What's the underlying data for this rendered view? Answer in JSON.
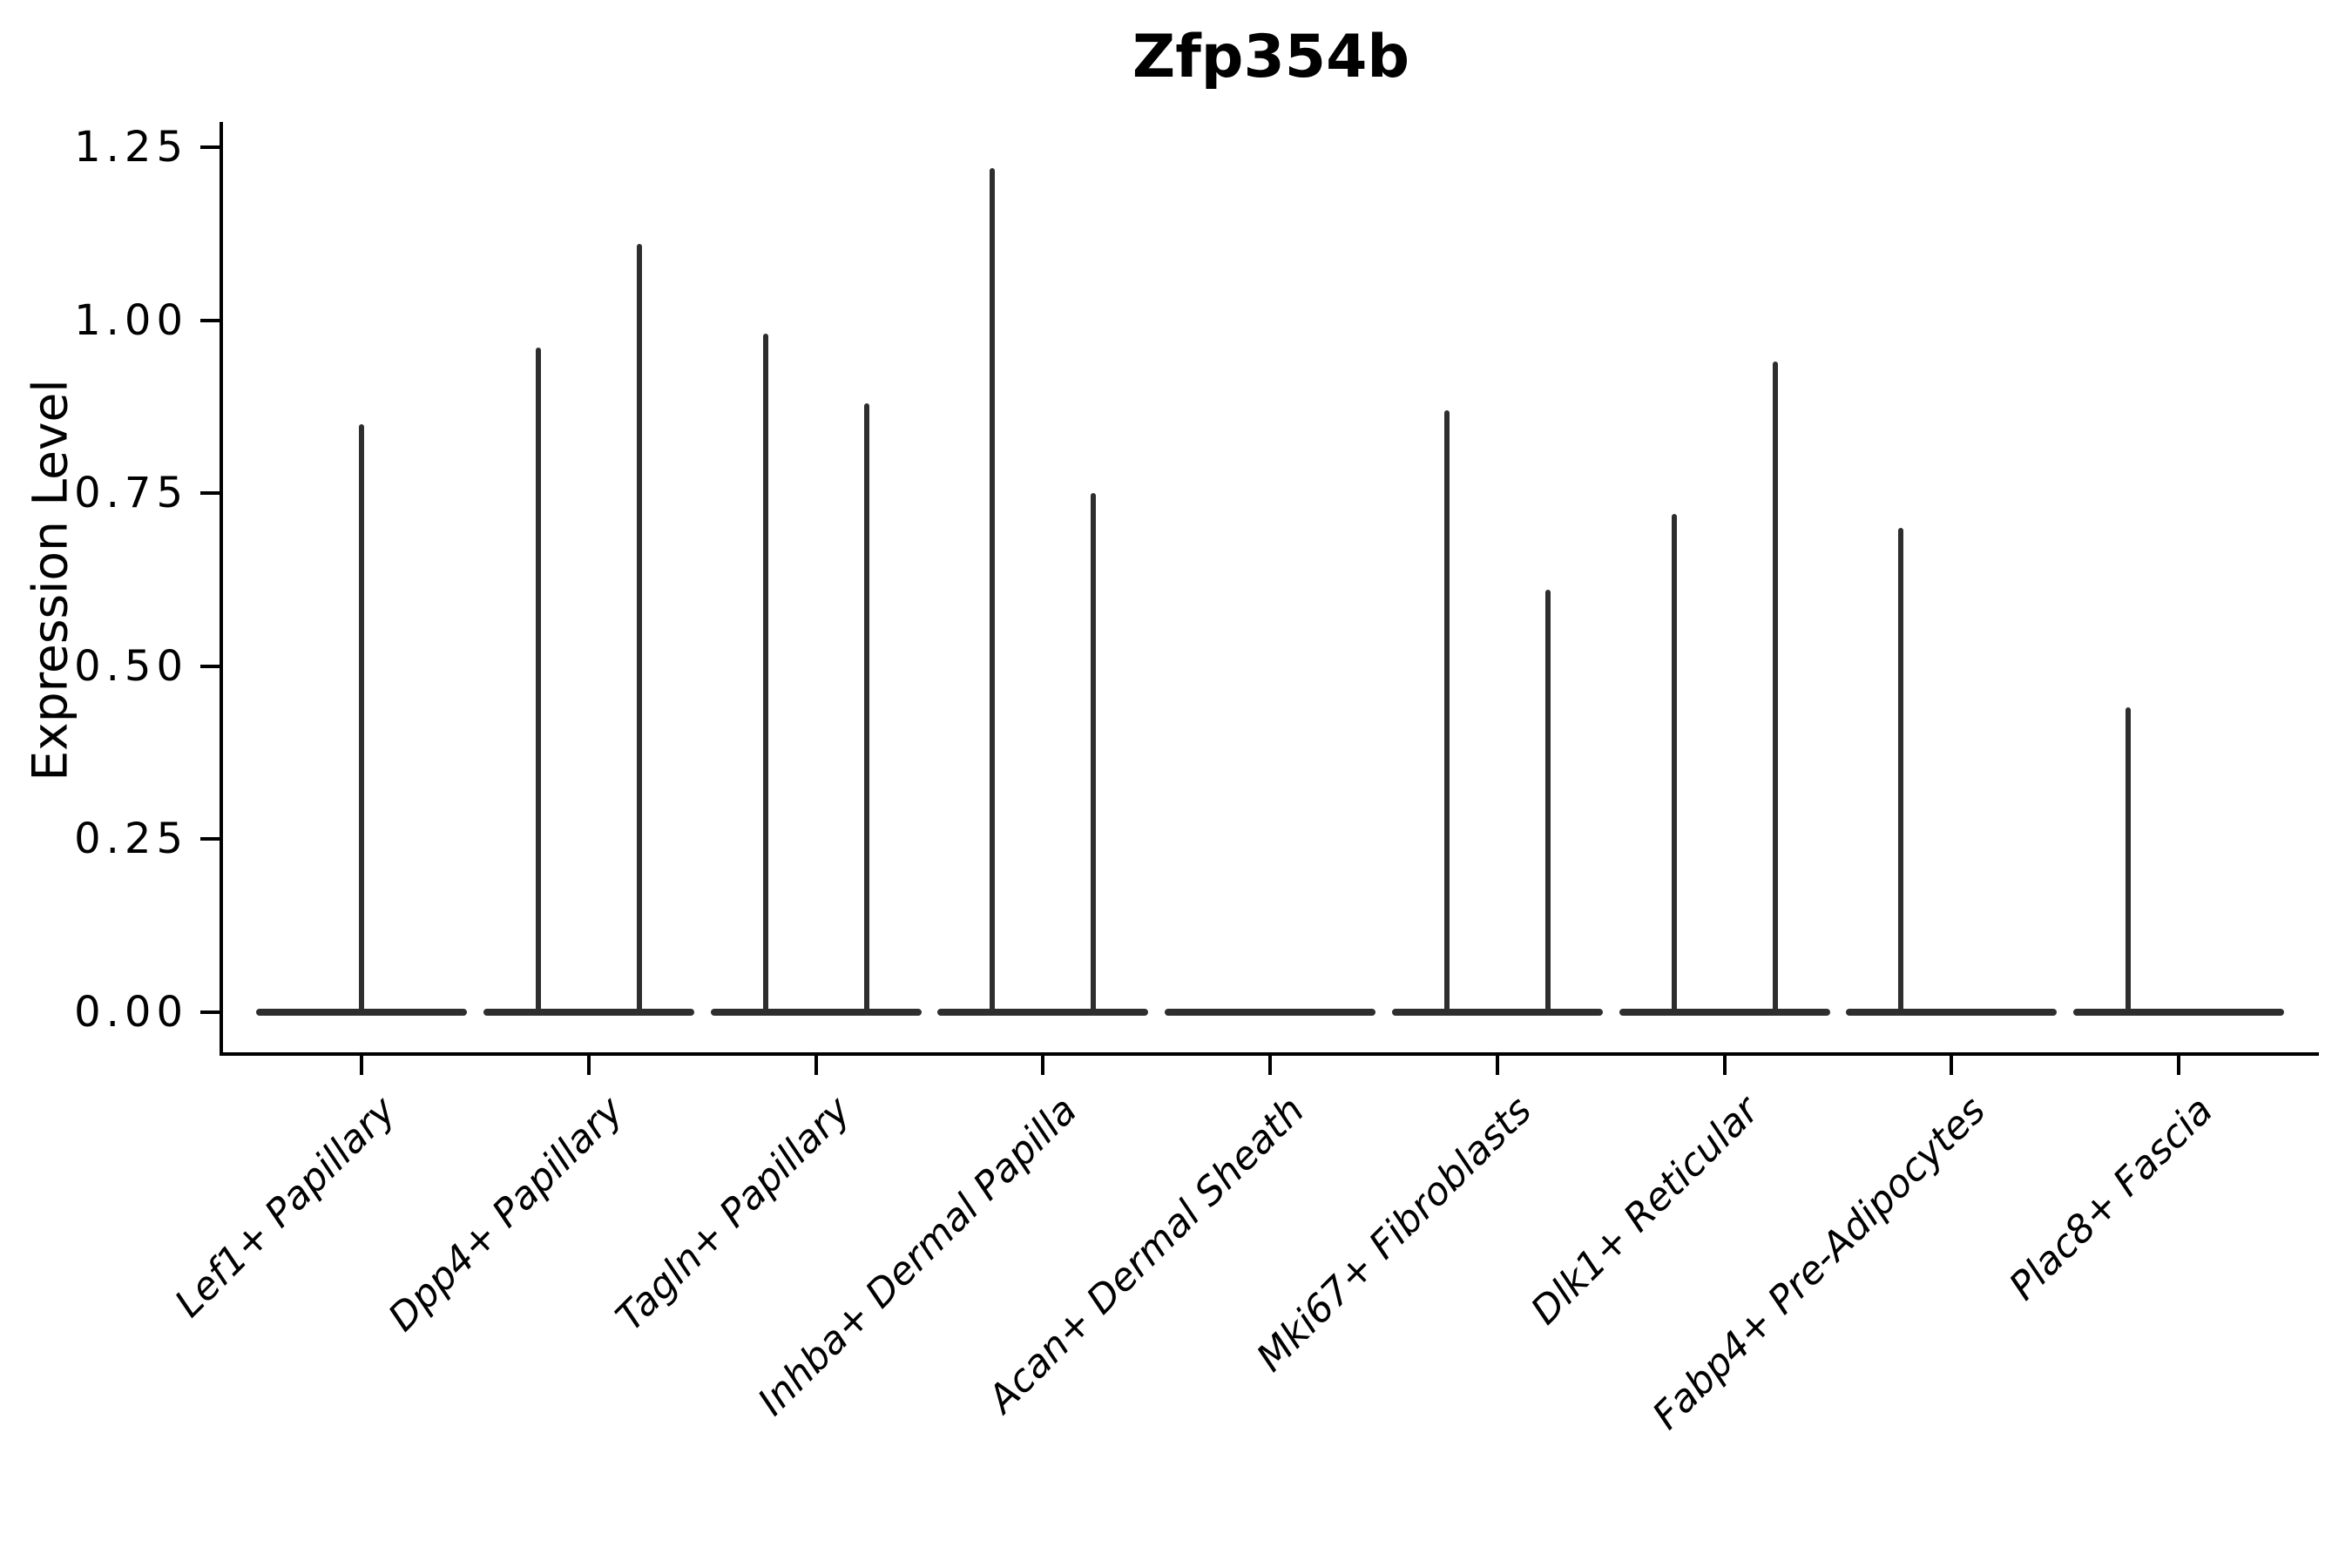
{
  "title": "Zfp354b",
  "colors": {
    "violin": "#2e2e2e",
    "axis": "#000000",
    "background": "#ffffff",
    "text": "#000000"
  },
  "chart_data": {
    "type": "violin",
    "title": "Zfp354b",
    "xlabel": "",
    "ylabel": "Expression Level",
    "ylim": [
      0,
      1.29
    ],
    "grid": false,
    "legend": null,
    "ytick_values": [
      0.0,
      0.25,
      0.5,
      0.75,
      1.0,
      1.25
    ],
    "ytick_labels": [
      "0.00",
      "0.25",
      "0.50",
      "0.75",
      "1.00",
      "1.25"
    ],
    "categories": [
      "Lef1+ Papillary",
      "Dpp4+ Papillary",
      "Tagln+ Papillary",
      "Inhba+ Dermal Papilla",
      "Acan+ Dermal Sheath",
      "Mki67+ Fibroblasts",
      "Dlk1+ Reticular",
      "Fabp4+ Pre-Adipocytes",
      "Plac8+ Fascia"
    ],
    "series": [
      {
        "category": "Lef1+ Papillary",
        "violins": [
          {
            "slot": "center",
            "max": 0.85
          }
        ]
      },
      {
        "category": "Dpp4+ Papillary",
        "violins": [
          {
            "slot": "left",
            "max": 0.96
          },
          {
            "slot": "right",
            "max": 1.11
          }
        ]
      },
      {
        "category": "Tagln+ Papillary",
        "violins": [
          {
            "slot": "left",
            "max": 0.98
          },
          {
            "slot": "right",
            "max": 0.88
          }
        ]
      },
      {
        "category": "Inhba+ Dermal Papilla",
        "violins": [
          {
            "slot": "left",
            "max": 1.22
          },
          {
            "slot": "right",
            "max": 0.75
          }
        ]
      },
      {
        "category": "Acan+ Dermal Sheath",
        "violins": []
      },
      {
        "category": "Mki67+ Fibroblasts",
        "violins": [
          {
            "slot": "left",
            "max": 0.87
          },
          {
            "slot": "right",
            "max": 0.61
          }
        ]
      },
      {
        "category": "Dlk1+ Reticular",
        "violins": [
          {
            "slot": "left",
            "max": 0.72
          },
          {
            "slot": "right",
            "max": 0.94
          }
        ]
      },
      {
        "category": "Fabp4+ Pre-Adipocytes",
        "violins": [
          {
            "slot": "left",
            "max": 0.7
          }
        ]
      },
      {
        "category": "Plac8+ Fascia",
        "violins": [
          {
            "slot": "left",
            "max": 0.44
          }
        ]
      }
    ],
    "note_baseline": "every category shows a flat density bar at expression 0; thin spikes mark the few expressing cells up to the max value"
  }
}
